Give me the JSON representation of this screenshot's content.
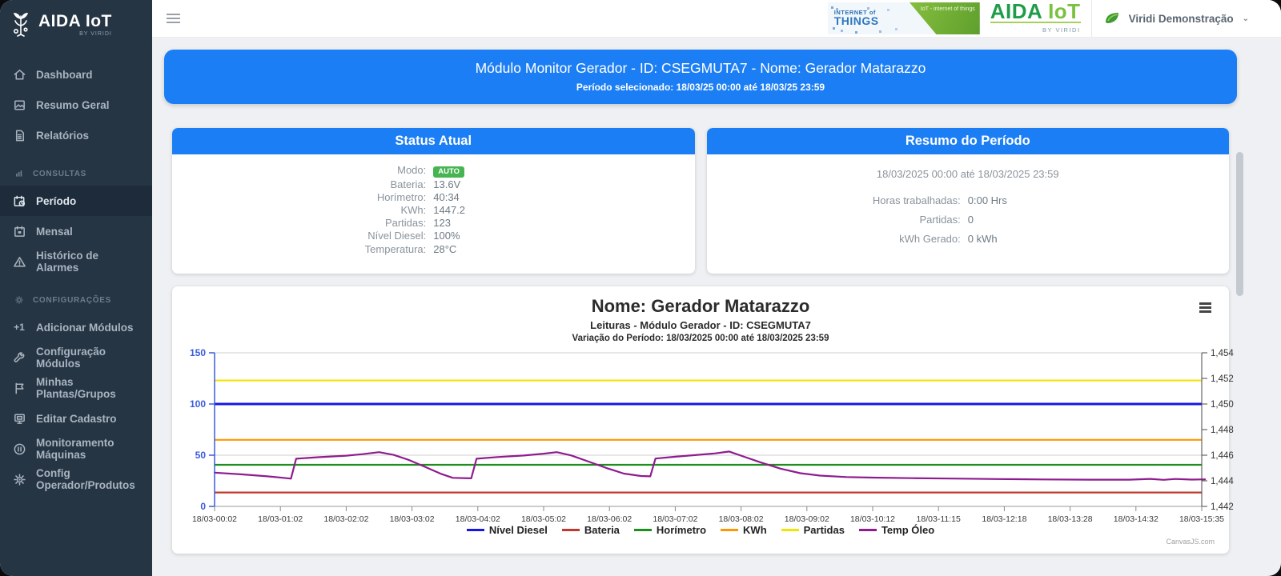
{
  "colors": {
    "primary_blue": "#1c7ef5",
    "sidebar_bg": "#263544",
    "badge_green": "#46b450"
  },
  "sidebar": {
    "logo_text": "AIDA IoT",
    "logo_sub": "BY VIRIDI",
    "main": [
      {
        "label": "Dashboard"
      },
      {
        "label": "Resumo Geral"
      },
      {
        "label": "Relatórios"
      }
    ],
    "sections": [
      {
        "label": "CONSULTAS"
      },
      {
        "label": "CONFIGURAÇÕES"
      }
    ],
    "consultas": [
      {
        "label": "Período",
        "active": true
      },
      {
        "label": "Mensal"
      },
      {
        "label": "Histórico de Alarmes"
      }
    ],
    "config": [
      {
        "label": "Adicionar Módulos"
      },
      {
        "label": "Configuração Módulos"
      },
      {
        "label": "Minhas Plantas/Grupos"
      },
      {
        "label": "Editar Cadastro"
      },
      {
        "label": "Monitoramento Máquinas"
      },
      {
        "label": "Config Operador/Produtos"
      }
    ]
  },
  "header": {
    "iot_banner": {
      "line1": "INTERNET of",
      "line2": "THINGS",
      "overlay": "IoT - internet of things"
    },
    "brand_a": "AIDA",
    "brand_b": "IoT",
    "brand_sub": "BY VIRIDI",
    "user": "Viridi Demonstração",
    "chevron": "⌄"
  },
  "banner": {
    "title": "Módulo Monitor Gerador - ID: CSEGMUTA7 - Nome: Gerador Matarazzo",
    "subtitle": "Período selecionado: 18/03/25 00:00 até 18/03/25 23:59"
  },
  "status_card": {
    "title": "Status Atual",
    "rows": [
      {
        "label": "Modo:",
        "value": "AUTO"
      },
      {
        "label": "Bateria:",
        "value": "13.6V"
      },
      {
        "label": "Horímetro:",
        "value": "40:34"
      },
      {
        "label": "KWh:",
        "value": "1447.2"
      },
      {
        "label": "Partidas:",
        "value": "123"
      },
      {
        "label": "Nível Diesel:",
        "value": "100%"
      },
      {
        "label": "Temperatura:",
        "value": "28°C"
      }
    ]
  },
  "summary_card": {
    "title": "Resumo do Período",
    "period": "18/03/2025 00:00 até 18/03/2025 23:59",
    "rows": [
      {
        "label": "Horas trabalhadas:",
        "value": "0:00 Hrs"
      },
      {
        "label": "Partidas:",
        "value": "0"
      },
      {
        "label": "kWh Gerado:",
        "value": "0 kWh"
      }
    ]
  },
  "chart_data": {
    "type": "line",
    "title": "Nome: Gerador Matarazzo",
    "subtitle1": "Leituras - Módulo Gerador - ID: CSEGMUTA7",
    "subtitle2": "Variação do Período: 18/03/2025 00:00 até 18/03/2025 23:59",
    "watermark": "CanvasJS.com",
    "grid": true,
    "legend_position": "bottom",
    "categories": [
      "18/03-00:02",
      "18/03-01:02",
      "18/03-02:02",
      "18/03-03:02",
      "18/03-04:02",
      "18/03-05:02",
      "18/03-06:02",
      "18/03-07:02",
      "18/03-08:02",
      "18/03-09:02",
      "18/03-10:12",
      "18/03-11:15",
      "18/03-12:18",
      "18/03-13:28",
      "18/03-14:32",
      "18/03-15:35"
    ],
    "left_axis": {
      "min": 0,
      "max": 150,
      "ticks": [
        0,
        50,
        100,
        150
      ],
      "color": "#3b5bdb"
    },
    "right_axis": {
      "min": 1442,
      "max": 1454,
      "tick_step": 2,
      "labels": [
        "1,442",
        "1,444",
        "1,446",
        "1,448",
        "1,450",
        "1,452",
        "1,454"
      ]
    },
    "series": [
      {
        "name": "Nível Diesel",
        "color": "#1515e8",
        "axis": "left",
        "constant": 100
      },
      {
        "name": "Bateria",
        "color": "#c0392b",
        "axis": "left",
        "constant": 13.6
      },
      {
        "name": "Horímetro",
        "color": "#1e8e1e",
        "axis": "left",
        "constant": 40.6
      },
      {
        "name": "KWh",
        "color": "#ff9800",
        "axis": "right",
        "constant": 1447.2
      },
      {
        "name": "Partidas",
        "color": "#f2e500",
        "axis": "left",
        "constant": 123
      },
      {
        "name": "Temp Óleo",
        "color": "#8e1c8e",
        "axis": "left",
        "points": [
          [
            0,
            33
          ],
          [
            0.4,
            31.3
          ],
          [
            0.8,
            29.4
          ],
          [
            1.05,
            27.9
          ],
          [
            1.16,
            27.1
          ],
          [
            1.24,
            46.6
          ],
          [
            1.6,
            48.1
          ],
          [
            2.0,
            49.5
          ],
          [
            2.25,
            51
          ],
          [
            2.5,
            53
          ],
          [
            2.72,
            50.3
          ],
          [
            2.95,
            45.4
          ],
          [
            3.2,
            38.6
          ],
          [
            3.45,
            31.6
          ],
          [
            3.62,
            27.9
          ],
          [
            3.9,
            27.4
          ],
          [
            3.98,
            46.6
          ],
          [
            4.3,
            48.2
          ],
          [
            4.7,
            49.7
          ],
          [
            5.0,
            51.5
          ],
          [
            5.2,
            53
          ],
          [
            5.42,
            49.8
          ],
          [
            5.68,
            43.8
          ],
          [
            5.95,
            37.6
          ],
          [
            6.22,
            32
          ],
          [
            6.48,
            29.7
          ],
          [
            6.62,
            29.4
          ],
          [
            6.7,
            46.7
          ],
          [
            7.0,
            48.5
          ],
          [
            7.3,
            50.1
          ],
          [
            7.6,
            51.7
          ],
          [
            7.82,
            53.6
          ],
          [
            8.05,
            48.4
          ],
          [
            8.3,
            42.9
          ],
          [
            8.6,
            36.9
          ],
          [
            8.9,
            32.4
          ],
          [
            9.2,
            30.1
          ],
          [
            9.6,
            28.7
          ],
          [
            10.0,
            28.1
          ],
          [
            10.6,
            27.6
          ],
          [
            11.2,
            27.2
          ],
          [
            11.9,
            26.7
          ],
          [
            12.6,
            26.3
          ],
          [
            13.3,
            26.1
          ],
          [
            13.9,
            26.1
          ],
          [
            14.22,
            26.9
          ],
          [
            14.42,
            25.9
          ],
          [
            14.6,
            26.8
          ],
          [
            14.85,
            26.2
          ],
          [
            15.05,
            26.4
          ]
        ]
      }
    ]
  }
}
